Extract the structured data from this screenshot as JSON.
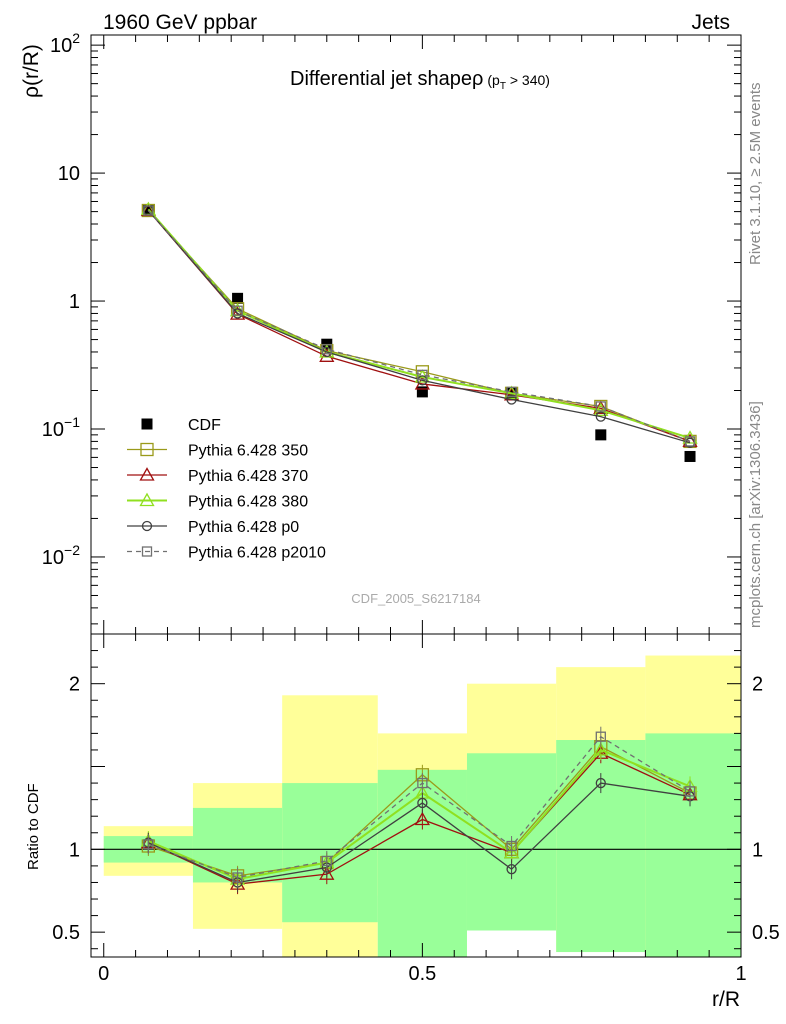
{
  "header": {
    "left": "1960 GeV ppbar",
    "right": "Jets"
  },
  "side": {
    "rivet": "Rivet 3.1.10, ≥ 2.5M events",
    "mcplots": "mcplots.cern.ch [arXiv:1306.3436]"
  },
  "analysis_id": "CDF_2005_S6217184",
  "colors": {
    "CDF": "#000000",
    "Pythia 6.428 350": "#9a9a1a",
    "Pythia 6.428 370": "#a01010",
    "Pythia 6.428 380": "#90e020",
    "Pythia 6.428 p0": "#404040",
    "Pythia 6.428 p2010": "#707070",
    "band_outer": "#ffff99",
    "band_inner": "#99ff99"
  },
  "chart_data": [
    {
      "type": "line",
      "title": "Differential jet shapeρ (p_T > 340)",
      "title_main": "Differential jet shapeρ",
      "title_sub_p": "(p",
      "title_sub_T": "T",
      "title_sub_rest": " > 340)",
      "ylabel": "ρ(r/R)",
      "yscale": "log",
      "ylim": [
        0.0025,
        120
      ],
      "xlim": [
        -0.02,
        1.0
      ],
      "y_ticks": [
        {
          "value": 100,
          "base": "10",
          "exp": "2"
        },
        {
          "value": 10,
          "base": "10",
          "exp": ""
        },
        {
          "value": 1,
          "base": "1",
          "exp": ""
        },
        {
          "value": 0.1,
          "base": "10",
          "exp": "−1"
        },
        {
          "value": 0.01,
          "base": "10",
          "exp": "−2"
        }
      ],
      "legend_placement": "lower-left",
      "x": [
        0.07,
        0.21,
        0.35,
        0.5,
        0.64,
        0.78,
        0.92
      ],
      "series": [
        {
          "name": "CDF",
          "style": "data",
          "values": [
            5.1,
            1.05,
            0.46,
            0.195,
            0.19,
            0.09,
            0.061
          ]
        },
        {
          "name": "Pythia 6.428 350",
          "style": "square",
          "values": [
            5.1,
            0.87,
            0.41,
            0.28,
            0.19,
            0.15,
            0.08
          ]
        },
        {
          "name": "Pythia 6.428 370",
          "style": "triangle",
          "values": [
            5.1,
            0.79,
            0.37,
            0.225,
            0.185,
            0.145,
            0.08
          ]
        },
        {
          "name": "Pythia 6.428 380",
          "style": "triangle",
          "values": [
            5.2,
            0.84,
            0.4,
            0.255,
            0.19,
            0.14,
            0.085
          ]
        },
        {
          "name": "Pythia 6.428 p0",
          "style": "circle",
          "values": [
            5.1,
            0.8,
            0.4,
            0.24,
            0.17,
            0.125,
            0.078
          ]
        },
        {
          "name": "Pythia 6.428 p2010",
          "style": "dashed-square",
          "values": [
            5.1,
            0.84,
            0.42,
            0.265,
            0.195,
            0.15,
            0.08
          ]
        }
      ]
    },
    {
      "type": "line",
      "xlabel": "r/R",
      "ylabel": "Ratio to CDF",
      "ylim": [
        0.35,
        2.3
      ],
      "xlim": [
        -0.02,
        1.0
      ],
      "y_ticks": [
        {
          "value": 2,
          "label": "2"
        },
        {
          "value": 1,
          "label": "1"
        },
        {
          "value": 0.5,
          "label": "0.5"
        }
      ],
      "x_ticks": [
        {
          "value": 0,
          "label": "0"
        },
        {
          "value": 0.5,
          "label": "0.5"
        },
        {
          "value": 1,
          "label": "1"
        }
      ],
      "bands": [
        {
          "x0": 0.0,
          "x1": 0.14,
          "outer": [
            0.84,
            1.14
          ],
          "inner": [
            0.92,
            1.08
          ]
        },
        {
          "x0": 0.14,
          "x1": 0.28,
          "outer": [
            0.52,
            1.4
          ],
          "inner": [
            0.8,
            1.25
          ]
        },
        {
          "x0": 0.28,
          "x1": 0.43,
          "outer": [
            0.35,
            1.93
          ],
          "inner": [
            0.56,
            1.4
          ]
        },
        {
          "x0": 0.43,
          "x1": 0.57,
          "outer": [
            0.72,
            1.7
          ],
          "inner": [
            0.35,
            1.48
          ]
        },
        {
          "x0": 0.57,
          "x1": 0.71,
          "outer": [
            0.51,
            2.0
          ],
          "inner": [
            0.51,
            1.58
          ]
        },
        {
          "x0": 0.71,
          "x1": 0.85,
          "outer": [
            0.38,
            2.1
          ],
          "inner": [
            0.38,
            1.66
          ]
        },
        {
          "x0": 0.85,
          "x1": 1.0,
          "outer": [
            0.35,
            2.17
          ],
          "inner": [
            0.35,
            1.7
          ]
        }
      ],
      "x": [
        0.07,
        0.21,
        0.35,
        0.5,
        0.64,
        0.78,
        0.92
      ],
      "series": [
        {
          "name": "Pythia 6.428 350",
          "style": "square",
          "values": [
            1.02,
            0.84,
            0.92,
            1.45,
            1.0,
            1.62,
            1.34
          ]
        },
        {
          "name": "Pythia 6.428 370",
          "style": "triangle",
          "values": [
            1.04,
            0.79,
            0.85,
            1.18,
            0.98,
            1.58,
            1.33
          ]
        },
        {
          "name": "Pythia 6.428 380",
          "style": "triangle",
          "values": [
            1.05,
            0.82,
            0.92,
            1.34,
            0.98,
            1.6,
            1.38
          ]
        },
        {
          "name": "Pythia 6.428 p0",
          "style": "circle",
          "values": [
            1.04,
            0.8,
            0.89,
            1.28,
            0.88,
            1.4,
            1.32
          ]
        },
        {
          "name": "Pythia 6.428 p2010",
          "style": "dashed-square",
          "values": [
            1.03,
            0.83,
            0.93,
            1.4,
            1.02,
            1.68,
            1.35
          ]
        }
      ]
    }
  ]
}
